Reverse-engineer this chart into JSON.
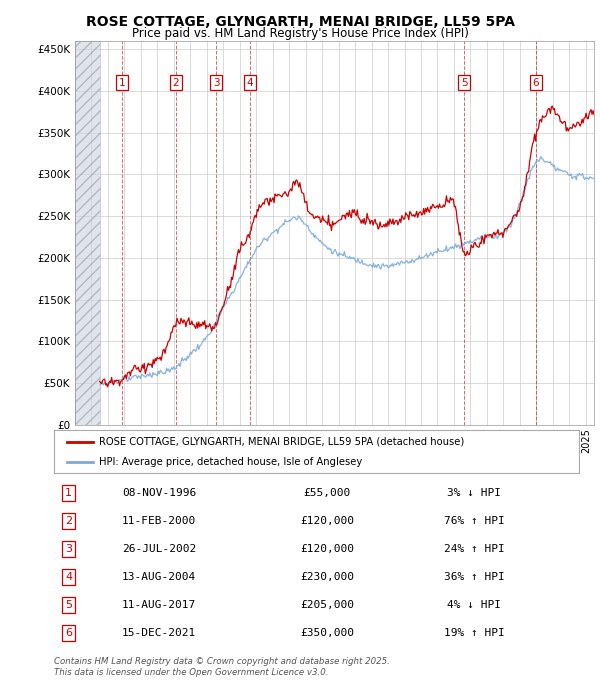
{
  "title": "ROSE COTTAGE, GLYNGARTH, MENAI BRIDGE, LL59 5PA",
  "subtitle": "Price paid vs. HM Land Registry's House Price Index (HPI)",
  "ylabel_ticks": [
    "£0",
    "£50K",
    "£100K",
    "£150K",
    "£200K",
    "£250K",
    "£300K",
    "£350K",
    "£400K",
    "£450K"
  ],
  "ytick_values": [
    0,
    50000,
    100000,
    150000,
    200000,
    250000,
    300000,
    350000,
    400000,
    450000
  ],
  "ylim": [
    0,
    460000
  ],
  "xlim_start": 1994.0,
  "xlim_end": 2025.5,
  "hatch_end": 1995.5,
  "red_color": "#cc0000",
  "blue_color": "#7aaadd",
  "sale_points": [
    {
      "num": 1,
      "year": 1996.86,
      "price": 55000
    },
    {
      "num": 2,
      "year": 2000.11,
      "price": 120000
    },
    {
      "num": 3,
      "year": 2002.56,
      "price": 120000
    },
    {
      "num": 4,
      "year": 2004.62,
      "price": 230000
    },
    {
      "num": 5,
      "year": 2017.61,
      "price": 205000
    },
    {
      "num": 6,
      "year": 2021.96,
      "price": 350000
    }
  ],
  "legend_line1": "ROSE COTTAGE, GLYNGARTH, MENAI BRIDGE, LL59 5PA (detached house)",
  "legend_line2": "HPI: Average price, detached house, Isle of Anglesey",
  "footnote": "Contains HM Land Registry data © Crown copyright and database right 2025.\nThis data is licensed under the Open Government Licence v3.0.",
  "table_rows": [
    {
      "num": 1,
      "date": "08-NOV-1996",
      "price": "£55,000",
      "pct": "3% ↓ HPI"
    },
    {
      "num": 2,
      "date": "11-FEB-2000",
      "price": "£120,000",
      "pct": "76% ↑ HPI"
    },
    {
      "num": 3,
      "date": "26-JUL-2002",
      "price": "£120,000",
      "pct": "24% ↑ HPI"
    },
    {
      "num": 4,
      "date": "13-AUG-2004",
      "price": "£230,000",
      "pct": "36% ↑ HPI"
    },
    {
      "num": 5,
      "date": "11-AUG-2017",
      "price": "£205,000",
      "pct": "4% ↓ HPI"
    },
    {
      "num": 6,
      "date": "15-DEC-2021",
      "price": "£350,000",
      "pct": "19% ↑ HPI"
    }
  ],
  "hpi_knots": [
    [
      1994.0,
      46000
    ],
    [
      1995.5,
      50000
    ],
    [
      1997.0,
      54000
    ],
    [
      1999.0,
      62000
    ],
    [
      2000.0,
      68000
    ],
    [
      2001.0,
      85000
    ],
    [
      2002.0,
      105000
    ],
    [
      2003.0,
      140000
    ],
    [
      2004.0,
      175000
    ],
    [
      2005.0,
      210000
    ],
    [
      2006.0,
      230000
    ],
    [
      2007.0,
      245000
    ],
    [
      2007.5,
      248000
    ],
    [
      2008.5,
      228000
    ],
    [
      2009.5,
      210000
    ],
    [
      2010.0,
      205000
    ],
    [
      2011.0,
      198000
    ],
    [
      2012.0,
      192000
    ],
    [
      2013.0,
      190000
    ],
    [
      2014.0,
      195000
    ],
    [
      2015.0,
      200000
    ],
    [
      2016.0,
      208000
    ],
    [
      2017.0,
      213000
    ],
    [
      2018.0,
      220000
    ],
    [
      2019.0,
      225000
    ],
    [
      2020.0,
      230000
    ],
    [
      2021.0,
      265000
    ],
    [
      2022.0,
      315000
    ],
    [
      2023.0,
      310000
    ],
    [
      2024.0,
      300000
    ],
    [
      2025.5,
      295000
    ]
  ],
  "red_knots": [
    [
      1995.5,
      50000
    ],
    [
      1996.0,
      51000
    ],
    [
      1996.86,
      55000
    ],
    [
      1997.5,
      65000
    ],
    [
      1998.0,
      68000
    ],
    [
      1998.5,
      72000
    ],
    [
      1999.0,
      78000
    ],
    [
      1999.5,
      90000
    ],
    [
      2000.11,
      120000
    ],
    [
      2001.0,
      120000
    ],
    [
      2001.5,
      120000
    ],
    [
      2002.0,
      118000
    ],
    [
      2002.56,
      120000
    ],
    [
      2003.0,
      145000
    ],
    [
      2003.5,
      175000
    ],
    [
      2004.0,
      210000
    ],
    [
      2004.62,
      230000
    ],
    [
      2005.0,
      255000
    ],
    [
      2005.5,
      265000
    ],
    [
      2006.0,
      270000
    ],
    [
      2006.5,
      275000
    ],
    [
      2007.0,
      280000
    ],
    [
      2007.5,
      290000
    ],
    [
      2008.0,
      265000
    ],
    [
      2008.5,
      250000
    ],
    [
      2009.0,
      245000
    ],
    [
      2009.5,
      240000
    ],
    [
      2010.0,
      245000
    ],
    [
      2010.5,
      250000
    ],
    [
      2011.0,
      255000
    ],
    [
      2011.5,
      248000
    ],
    [
      2012.0,
      245000
    ],
    [
      2012.5,
      240000
    ],
    [
      2013.0,
      242000
    ],
    [
      2013.5,
      245000
    ],
    [
      2014.0,
      248000
    ],
    [
      2014.5,
      252000
    ],
    [
      2015.0,
      255000
    ],
    [
      2015.5,
      258000
    ],
    [
      2016.0,
      262000
    ],
    [
      2016.5,
      265000
    ],
    [
      2017.0,
      268000
    ],
    [
      2017.61,
      205000
    ],
    [
      2018.0,
      210000
    ],
    [
      2018.5,
      218000
    ],
    [
      2019.0,
      225000
    ],
    [
      2019.5,
      228000
    ],
    [
      2020.0,
      232000
    ],
    [
      2020.5,
      245000
    ],
    [
      2021.0,
      260000
    ],
    [
      2021.96,
      350000
    ],
    [
      2022.5,
      370000
    ],
    [
      2023.0,
      380000
    ],
    [
      2023.5,
      365000
    ],
    [
      2024.0,
      355000
    ],
    [
      2024.5,
      360000
    ],
    [
      2025.0,
      370000
    ],
    [
      2025.5,
      375000
    ]
  ]
}
